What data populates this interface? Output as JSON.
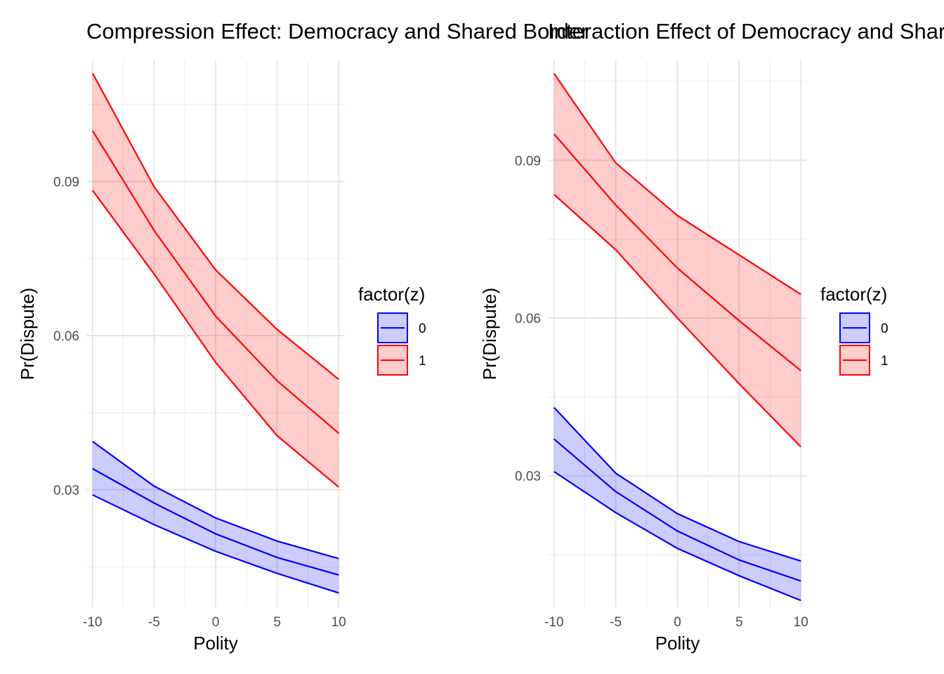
{
  "chart_data": [
    {
      "type": "line",
      "title": "Compression Effect: Democracy and Shared Border",
      "xlabel": "Polity",
      "ylabel": "Pr(Dispute)",
      "xlim": [
        -10.5,
        10.5
      ],
      "ylim": [
        0.0071,
        0.1136
      ],
      "x_ticks": [
        -10,
        -5,
        0,
        5,
        10
      ],
      "x_tick_labels": [
        "-10",
        "-5",
        "0",
        "5",
        "10"
      ],
      "y_ticks": [
        0.03,
        0.06,
        0.09
      ],
      "y_tick_labels": [
        "0.03",
        "0.06",
        "0.09"
      ],
      "grid": true,
      "legend": {
        "title": "factor(z)",
        "position": "right"
      },
      "x": [
        -10,
        -5,
        0,
        5,
        10
      ],
      "series": [
        {
          "name": "0",
          "color": "#0000FF",
          "fill": "#0000FF",
          "values": [
            0.0341,
            0.0274,
            0.0214,
            0.0168,
            0.0134
          ],
          "lower": [
            0.029,
            0.0232,
            0.018,
            0.0137,
            0.0099
          ],
          "upper": [
            0.0394,
            0.0307,
            0.0245,
            0.02,
            0.0166
          ]
        },
        {
          "name": "1",
          "color": "#FF0000",
          "fill": "#FF0000",
          "values": [
            0.0999,
            0.0805,
            0.0638,
            0.0512,
            0.041
          ],
          "lower": [
            0.0883,
            0.072,
            0.0548,
            0.0405,
            0.0305
          ],
          "upper": [
            0.1111,
            0.089,
            0.0728,
            0.0612,
            0.0515
          ]
        }
      ]
    },
    {
      "type": "line",
      "title": "Interaction Effect of Democracy and Shared Border",
      "xlabel": "Polity",
      "ylabel": "Pr(Dispute)",
      "xlim": [
        -10.5,
        10.5
      ],
      "ylim": [
        0.005,
        0.109
      ],
      "x_ticks": [
        -10,
        -5,
        0,
        5,
        10
      ],
      "x_tick_labels": [
        "-10",
        "-5",
        "0",
        "5",
        "10"
      ],
      "y_ticks": [
        0.03,
        0.06,
        0.09
      ],
      "y_tick_labels": [
        "0.03",
        "0.06",
        "0.09"
      ],
      "grid": true,
      "legend": {
        "title": "factor(z)",
        "position": "right"
      },
      "x": [
        -10,
        -5,
        0,
        5,
        10
      ],
      "series": [
        {
          "name": "0",
          "color": "#0000FF",
          "fill": "#0000FF",
          "values": [
            0.037,
            0.027,
            0.0195,
            0.014,
            0.01
          ],
          "lower": [
            0.0308,
            0.023,
            0.0162,
            0.011,
            0.0063
          ],
          "upper": [
            0.043,
            0.0305,
            0.0228,
            0.0175,
            0.0138
          ]
        },
        {
          "name": "1",
          "color": "#FF0000",
          "fill": "#FF0000",
          "values": [
            0.095,
            0.0815,
            0.0695,
            0.0595,
            0.05
          ],
          "lower": [
            0.0835,
            0.073,
            0.06,
            0.0475,
            0.0355
          ],
          "upper": [
            0.1065,
            0.0895,
            0.0795,
            0.072,
            0.0645
          ]
        }
      ]
    }
  ]
}
